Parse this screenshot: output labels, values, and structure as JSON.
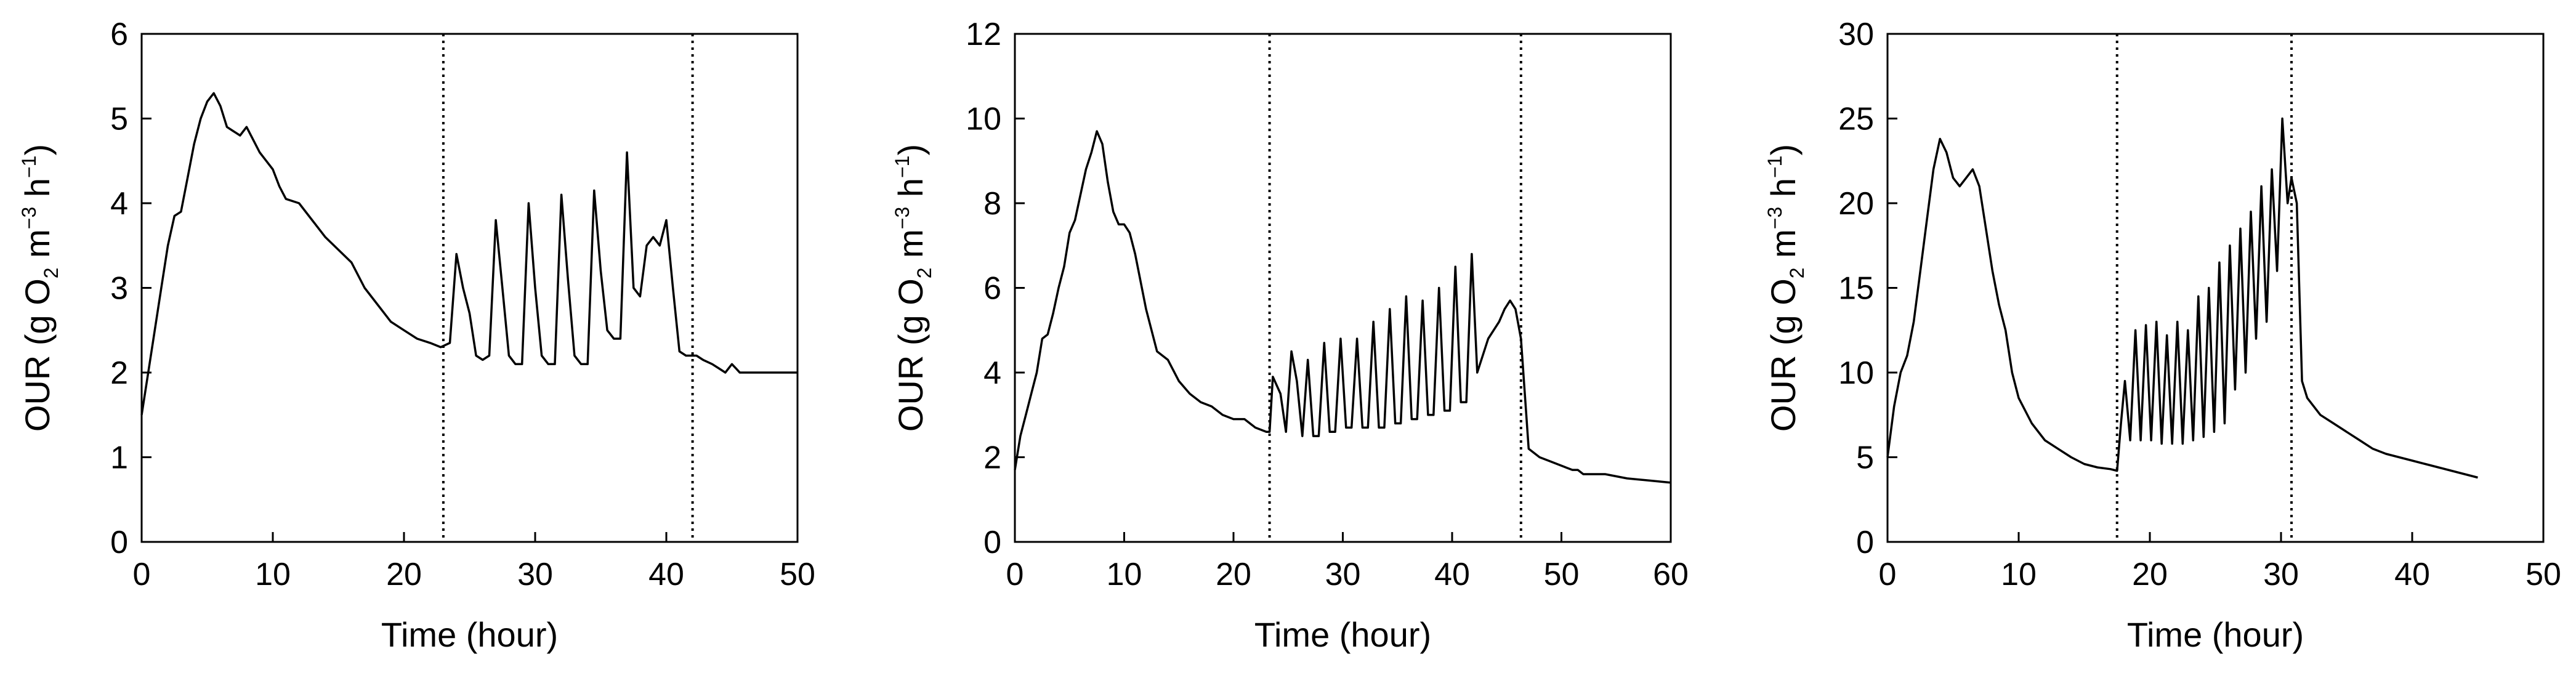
{
  "chart_data": [
    {
      "type": "line",
      "xlabel": "Time (hour)",
      "ylabel": {
        "prefix": "OUR (g O",
        "sub": "2",
        "mid1": " m",
        "sup1": "−3",
        "mid2": " h",
        "sup2": "−1",
        "suffix": ")"
      },
      "xlim": [
        0,
        50
      ],
      "ylim": [
        0,
        6
      ],
      "xticks": [
        0,
        10,
        20,
        30,
        40,
        50
      ],
      "yticks": [
        0,
        1,
        2,
        3,
        4,
        5,
        6
      ],
      "vlines": [
        23,
        42
      ],
      "line_color": "#000000",
      "series": [
        {
          "x": [
            0,
            0.5,
            1,
            1.5,
            2,
            2.5,
            3,
            3.5,
            4,
            4.5,
            5,
            5.5,
            6,
            6.5,
            7,
            7.5,
            8,
            8.5,
            9,
            9.5,
            10,
            10.5,
            11,
            12,
            13,
            14,
            15,
            16,
            17,
            18,
            19,
            20,
            21,
            22,
            22.8,
            23.5,
            24,
            24.5,
            25,
            25.5,
            26,
            26.5,
            27,
            27.5,
            28,
            28.5,
            29,
            29.5,
            30,
            30.5,
            31,
            31.5,
            32,
            32.5,
            33,
            33.5,
            34,
            34.5,
            35,
            35.5,
            36,
            36.5,
            37,
            37.5,
            38,
            38.5,
            39,
            39.5,
            40,
            40.5,
            41,
            41.5,
            42,
            42.3,
            42.8,
            43.5,
            44,
            44.5,
            45,
            45.3,
            45.6,
            46,
            47,
            48,
            49,
            50
          ],
          "y": [
            1.5,
            2.0,
            2.5,
            3.0,
            3.5,
            3.85,
            3.9,
            4.3,
            4.7,
            5.0,
            5.2,
            5.3,
            5.15,
            4.9,
            4.85,
            4.8,
            4.9,
            4.75,
            4.6,
            4.5,
            4.4,
            4.2,
            4.05,
            4.0,
            3.8,
            3.6,
            3.45,
            3.3,
            3.0,
            2.8,
            2.6,
            2.5,
            2.4,
            2.35,
            2.3,
            2.35,
            3.4,
            3.0,
            2.7,
            2.2,
            2.15,
            2.2,
            3.8,
            3.0,
            2.2,
            2.1,
            2.1,
            4.0,
            3.0,
            2.2,
            2.1,
            2.1,
            4.1,
            3.1,
            2.2,
            2.1,
            2.1,
            4.15,
            3.2,
            2.5,
            2.4,
            2.4,
            4.6,
            3.0,
            2.9,
            3.5,
            3.6,
            3.5,
            3.8,
            3.0,
            2.25,
            2.2,
            2.2,
            2.2,
            2.15,
            2.1,
            2.05,
            2.0,
            2.1,
            2.05,
            2.0,
            2.0,
            2.0,
            2.0,
            2.0,
            2.0
          ]
        }
      ]
    },
    {
      "type": "line",
      "xlabel": "Time (hour)",
      "ylabel": {
        "prefix": "OUR (g O",
        "sub": "2",
        "mid1": " m",
        "sup1": "−3",
        "mid2": " h",
        "sup2": "−1",
        "suffix": ")"
      },
      "xlim": [
        0,
        60
      ],
      "ylim": [
        0,
        12
      ],
      "xticks": [
        0,
        10,
        20,
        30,
        40,
        50,
        60
      ],
      "yticks": [
        0,
        2,
        4,
        6,
        8,
        10,
        12
      ],
      "vlines": [
        23.3,
        46.3
      ],
      "line_color": "#000000",
      "series": [
        {
          "x": [
            0,
            0.5,
            1,
            1.5,
            2,
            2.5,
            3,
            3.5,
            4,
            4.5,
            5,
            5.5,
            6,
            6.5,
            7,
            7.5,
            8,
            8.5,
            9,
            9.5,
            10,
            10.5,
            11,
            12,
            13,
            14,
            15,
            16,
            17,
            18,
            19,
            20,
            21,
            22,
            23,
            23.3,
            23.6,
            24.3,
            24.8,
            25.3,
            25.8,
            26.3,
            26.8,
            27.3,
            27.8,
            28.3,
            28.8,
            29.3,
            29.8,
            30.3,
            30.8,
            31.3,
            31.8,
            32.3,
            32.8,
            33.3,
            33.8,
            34.3,
            34.8,
            35.3,
            35.8,
            36.3,
            36.8,
            37.3,
            37.8,
            38.3,
            38.8,
            39.3,
            39.8,
            40.3,
            40.8,
            41.3,
            41.8,
            42.3,
            42.8,
            43.3,
            43.8,
            44.3,
            44.8,
            45.3,
            45.8,
            46.3,
            47,
            48,
            49,
            50,
            50.5,
            51,
            51.5,
            52,
            54,
            56,
            58,
            60
          ],
          "y": [
            1.7,
            2.5,
            3.0,
            3.5,
            4.0,
            4.8,
            4.9,
            5.4,
            6.0,
            6.5,
            7.3,
            7.6,
            8.2,
            8.8,
            9.2,
            9.7,
            9.4,
            8.5,
            7.8,
            7.5,
            7.5,
            7.3,
            6.8,
            5.5,
            4.5,
            4.3,
            3.8,
            3.5,
            3.3,
            3.2,
            3.0,
            2.9,
            2.9,
            2.7,
            2.6,
            2.6,
            3.9,
            3.5,
            2.6,
            4.5,
            3.8,
            2.5,
            4.3,
            2.5,
            2.5,
            4.7,
            2.6,
            2.6,
            4.8,
            2.7,
            2.7,
            4.8,
            2.7,
            2.7,
            5.2,
            2.7,
            2.7,
            5.5,
            2.8,
            2.8,
            5.8,
            2.9,
            2.9,
            5.7,
            3.0,
            3.0,
            6.0,
            3.1,
            3.1,
            6.5,
            3.3,
            3.3,
            6.8,
            4.0,
            4.4,
            4.8,
            5.0,
            5.2,
            5.5,
            5.7,
            5.5,
            4.8,
            2.2,
            2.0,
            1.9,
            1.8,
            1.75,
            1.7,
            1.7,
            1.6,
            1.6,
            1.5,
            1.45,
            1.4
          ]
        }
      ]
    },
    {
      "type": "line",
      "xlabel": "Time (hour)",
      "ylabel": {
        "prefix": "OUR (g O",
        "sub": "2",
        "mid1": " m",
        "sup1": "−3",
        "mid2": " h",
        "sup2": "−1",
        "suffix": ")"
      },
      "xlim": [
        0,
        50
      ],
      "ylim": [
        0,
        30
      ],
      "xticks": [
        0,
        10,
        20,
        30,
        40,
        50
      ],
      "yticks": [
        0,
        5,
        10,
        15,
        20,
        25,
        30
      ],
      "vlines": [
        17.5,
        30.8
      ],
      "line_color": "#000000",
      "series": [
        {
          "x": [
            0,
            0.5,
            1,
            1.5,
            2,
            2.5,
            3,
            3.5,
            4,
            4.5,
            5,
            5.5,
            6,
            6.5,
            7,
            7.5,
            8,
            8.5,
            9,
            9.5,
            10,
            11,
            12,
            13,
            14,
            15,
            16,
            17,
            17.5,
            17.8,
            18.1,
            18.5,
            18.9,
            19.3,
            19.7,
            20.1,
            20.5,
            20.9,
            21.3,
            21.7,
            22.1,
            22.5,
            22.9,
            23.3,
            23.7,
            24.1,
            24.5,
            24.9,
            25.3,
            25.7,
            26.1,
            26.5,
            26.9,
            27.3,
            27.7,
            28.1,
            28.5,
            28.9,
            29.3,
            29.7,
            30.1,
            30.5,
            30.8,
            31.2,
            31.6,
            32,
            33,
            34,
            35,
            36,
            37,
            38,
            39,
            40,
            41,
            42,
            43,
            44,
            45
          ],
          "y": [
            5.0,
            8.0,
            10.0,
            11.0,
            13.0,
            16.0,
            19.0,
            22.0,
            23.8,
            23.0,
            21.5,
            21.0,
            21.5,
            22.0,
            21.0,
            18.5,
            16.0,
            14.0,
            12.5,
            10.0,
            8.5,
            7.0,
            6.0,
            5.5,
            5.0,
            4.6,
            4.4,
            4.3,
            4.2,
            7.0,
            9.5,
            6.0,
            12.5,
            6.0,
            12.8,
            6.0,
            13.0,
            5.8,
            12.2,
            5.8,
            13.0,
            5.8,
            12.5,
            6.0,
            14.5,
            6.2,
            15.0,
            6.5,
            16.5,
            7.0,
            17.5,
            9.0,
            18.5,
            10.0,
            19.5,
            12.0,
            21.0,
            13.0,
            22.0,
            16.0,
            25.0,
            20.0,
            21.5,
            20.0,
            9.5,
            8.5,
            7.5,
            7.0,
            6.5,
            6.0,
            5.5,
            5.2,
            5.0,
            4.8,
            4.6,
            4.4,
            4.2,
            4.0,
            3.8
          ]
        }
      ]
    }
  ]
}
